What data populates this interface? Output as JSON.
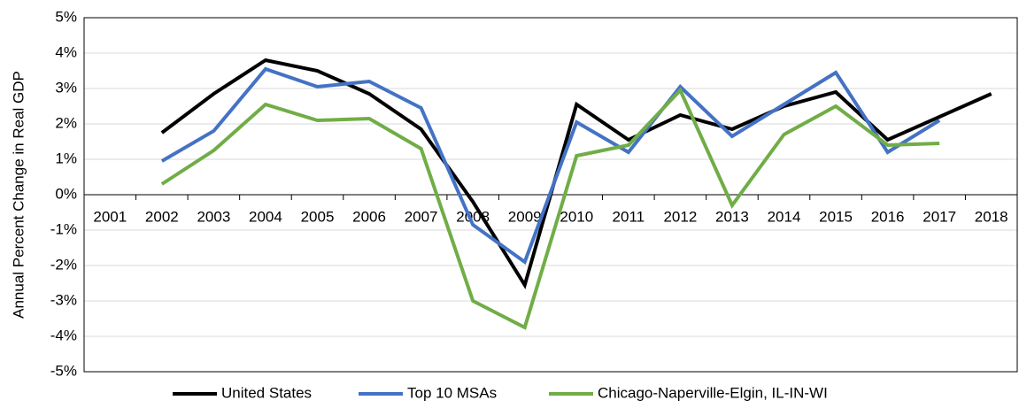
{
  "chart_data": {
    "type": "line",
    "y_label": "Annual Percent Change in Real GDP",
    "categories": [
      "2001",
      "2002",
      "2003",
      "2004",
      "2005",
      "2006",
      "2007",
      "2008",
      "2009",
      "2010",
      "2011",
      "2012",
      "2013",
      "2014",
      "2015",
      "2016",
      "2017",
      "2018"
    ],
    "series": [
      {
        "name": "United States",
        "color": "#000000",
        "values": [
          null,
          1.75,
          2.85,
          3.8,
          3.5,
          2.85,
          1.85,
          -0.2,
          -2.55,
          2.55,
          1.55,
          2.25,
          1.85,
          2.5,
          2.9,
          1.55,
          2.2,
          2.85
        ]
      },
      {
        "name": "Top 10 MSAs",
        "color": "#4472c4",
        "values": [
          null,
          0.95,
          1.8,
          3.55,
          3.05,
          3.2,
          2.45,
          -0.85,
          -1.9,
          2.05,
          1.2,
          3.05,
          1.65,
          2.55,
          3.45,
          1.2,
          2.1,
          null
        ]
      },
      {
        "name": "Chicago-Naperville-Elgin, IL-IN-WI",
        "color": "#70ad47",
        "values": [
          null,
          0.3,
          1.25,
          2.55,
          2.1,
          2.15,
          1.3,
          -3.0,
          -3.75,
          1.1,
          1.4,
          2.95,
          -0.3,
          1.7,
          2.5,
          1.4,
          1.45,
          null
        ]
      }
    ],
    "ylim": [
      -5,
      5
    ],
    "yticks": [
      {
        "value": -5,
        "label": "-5%"
      },
      {
        "value": -4,
        "label": "-4%"
      },
      {
        "value": -3,
        "label": "-3%"
      },
      {
        "value": -2,
        "label": "-2%"
      },
      {
        "value": -1,
        "label": "-1%"
      },
      {
        "value": 0,
        "label": "0%"
      },
      {
        "value": 1,
        "label": "1%"
      },
      {
        "value": 2,
        "label": "2%"
      },
      {
        "value": 3,
        "label": "3%"
      },
      {
        "value": 4,
        "label": "4%"
      },
      {
        "value": 5,
        "label": "5%"
      }
    ],
    "grid": true,
    "legend": "bottom"
  }
}
